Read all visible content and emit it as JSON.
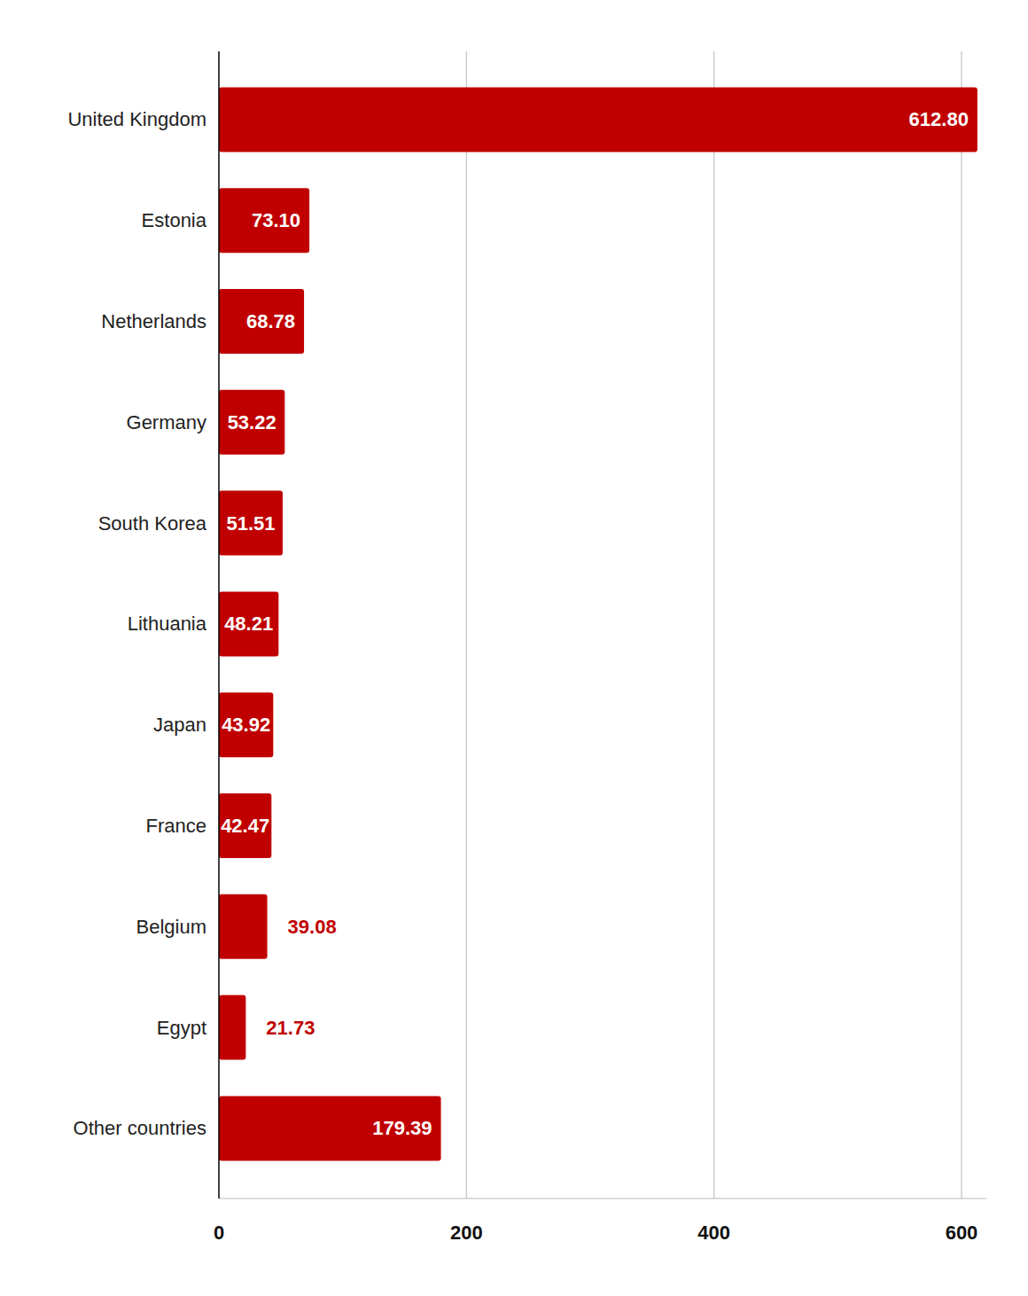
{
  "chart_data": {
    "type": "bar",
    "orientation": "horizontal",
    "categories": [
      "United Kingdom",
      "Estonia",
      "Netherlands",
      "Germany",
      "South Korea",
      "Lithuania",
      "Japan",
      "France",
      "Belgium",
      "Egypt",
      "Other countries"
    ],
    "values": [
      612.8,
      73.1,
      68.78,
      53.22,
      51.51,
      48.21,
      43.92,
      42.47,
      39.08,
      21.73,
      179.39
    ],
    "value_labels": [
      "612.80",
      "73.10",
      "68.78",
      "53.22",
      "51.51",
      "48.21",
      "43.92",
      "42.47",
      "39.08",
      "21.73",
      "179.39"
    ],
    "color": "#c00000",
    "xlim": [
      0,
      620
    ],
    "xticks": [
      0,
      200,
      400,
      600
    ],
    "grid": true,
    "data_labels": true
  }
}
